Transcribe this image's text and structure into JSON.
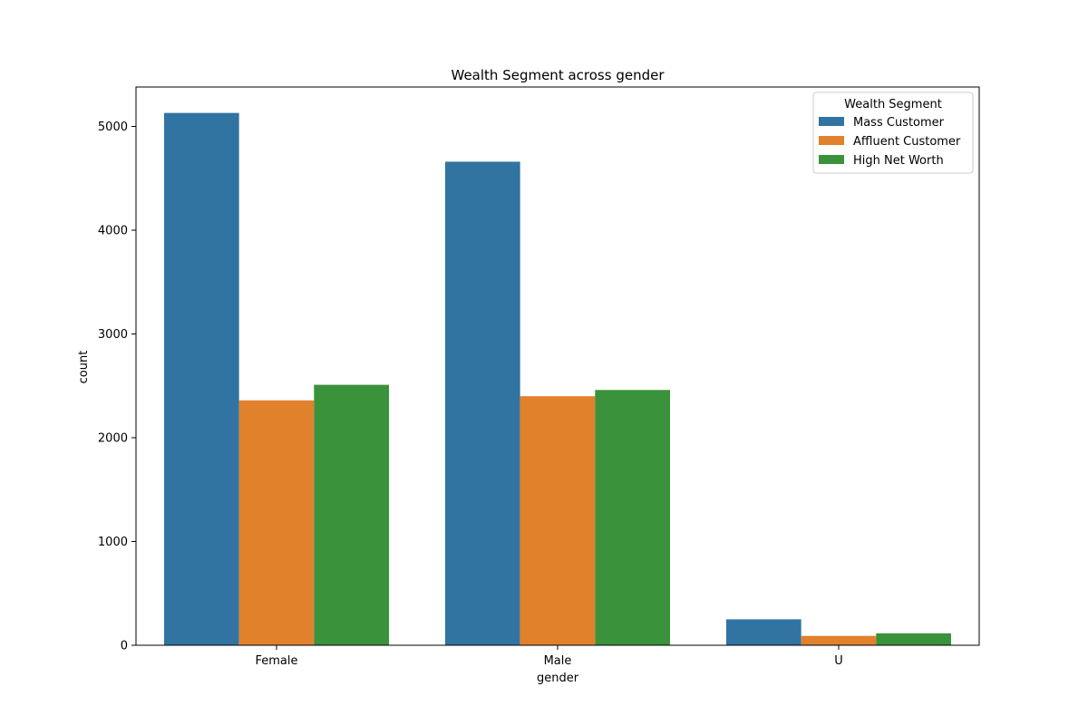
{
  "chart_data": {
    "type": "bar",
    "title": "Wealth Segment across gender",
    "xlabel": "gender",
    "ylabel": "count",
    "categories": [
      "Female",
      "Male",
      "U"
    ],
    "ylim": [
      0,
      5380
    ],
    "yticks": [
      0,
      1000,
      2000,
      3000,
      4000,
      5000
    ],
    "legend": {
      "title": "Wealth Segment",
      "placement": "top-right"
    },
    "grid": false,
    "series": [
      {
        "name": "Mass Customer",
        "color": "#3274a1",
        "values": [
          5130,
          4660,
          250
        ]
      },
      {
        "name": "Affluent Customer",
        "color": "#e1812c",
        "values": [
          2360,
          2400,
          90
        ]
      },
      {
        "name": "High Net Worth",
        "color": "#3a923a",
        "values": [
          2510,
          2460,
          115
        ]
      }
    ]
  }
}
